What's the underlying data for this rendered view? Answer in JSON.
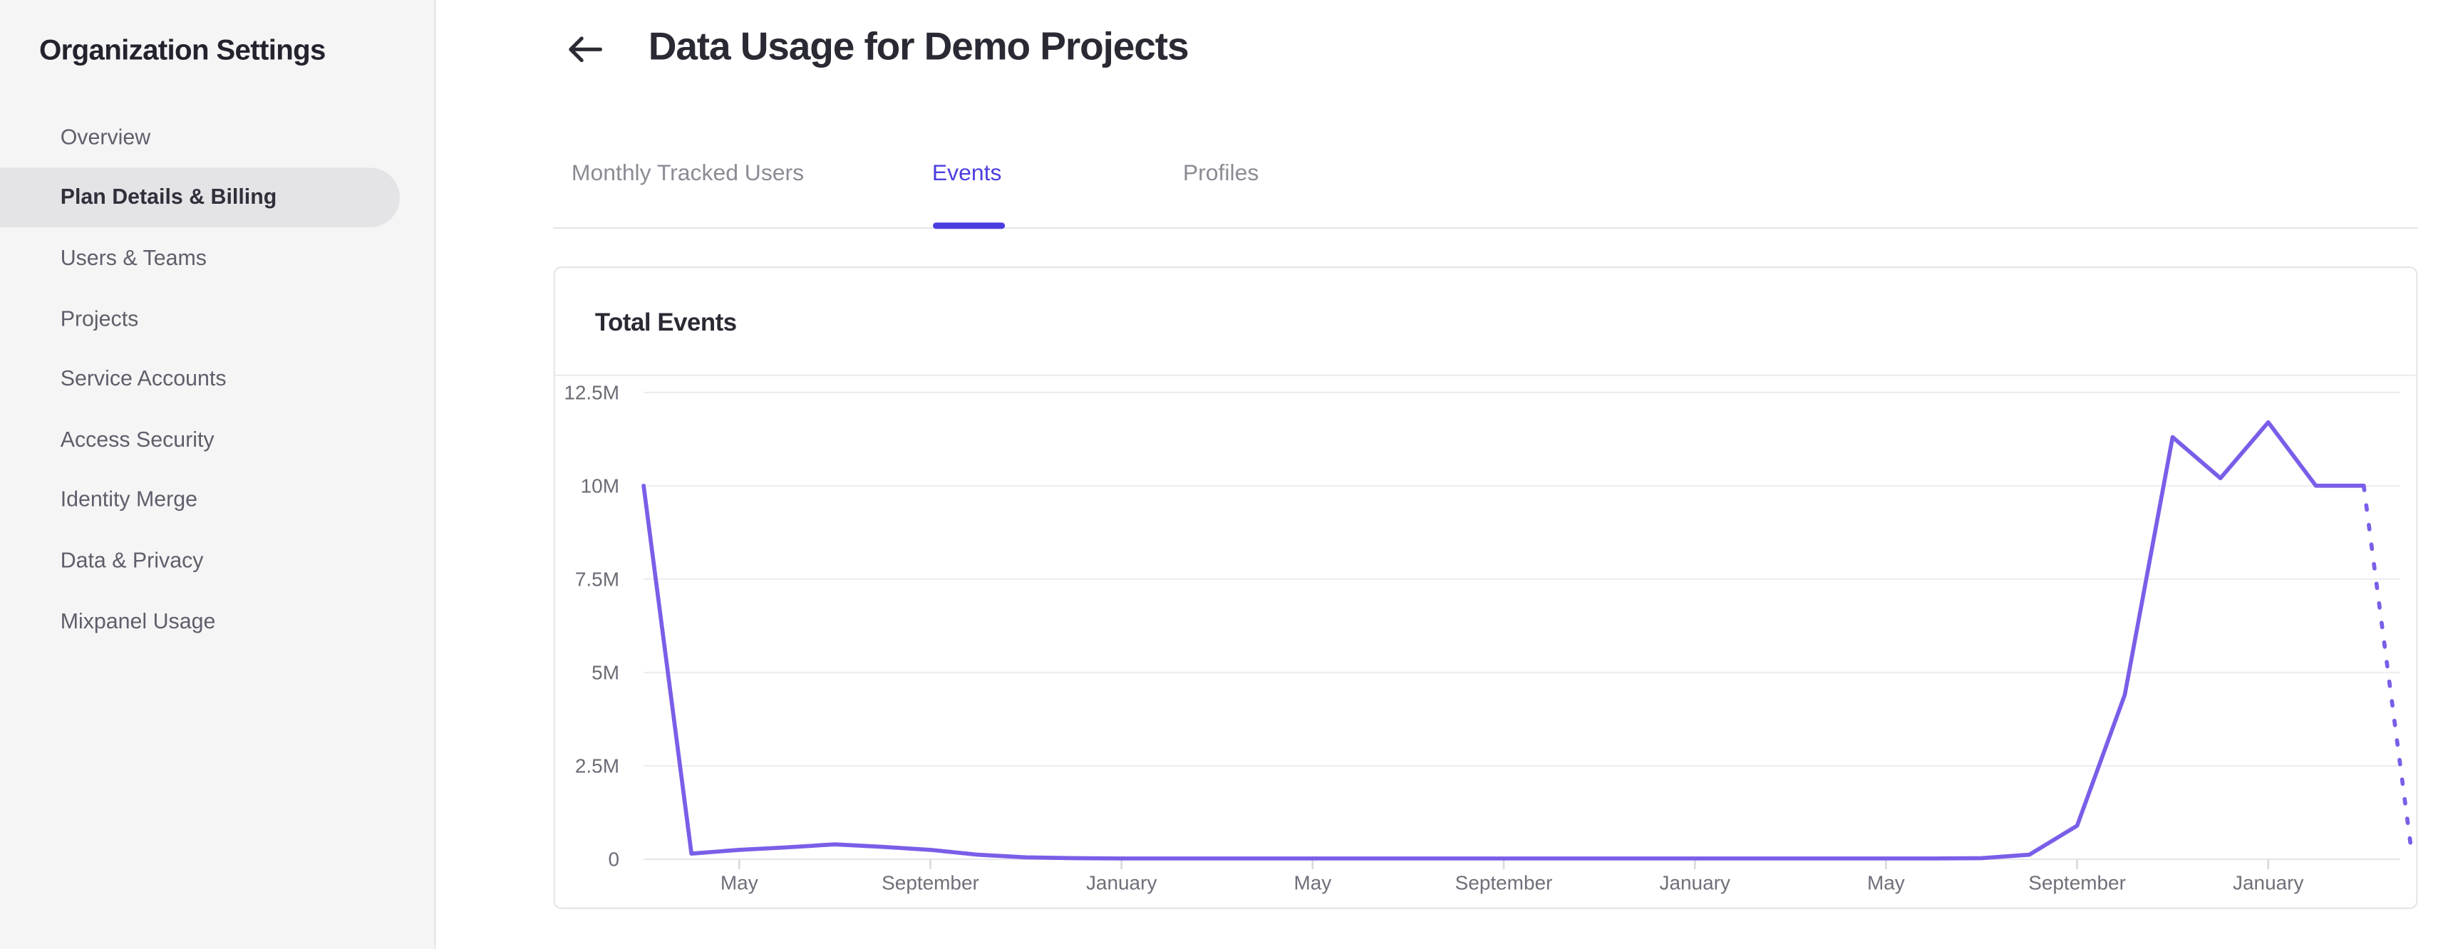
{
  "sidebar": {
    "title": "Organization Settings",
    "items": [
      {
        "label": "Overview",
        "active": false
      },
      {
        "label": "Plan Details & Billing",
        "active": true
      },
      {
        "label": "Users & Teams",
        "active": false
      },
      {
        "label": "Projects",
        "active": false
      },
      {
        "label": "Service Accounts",
        "active": false
      },
      {
        "label": "Access Security",
        "active": false
      },
      {
        "label": "Identity Merge",
        "active": false
      },
      {
        "label": "Data & Privacy",
        "active": false
      },
      {
        "label": "Mixpanel Usage",
        "active": false
      }
    ]
  },
  "header": {
    "back_icon": "left-arrow",
    "title": "Data Usage for Demo Projects"
  },
  "tabs": [
    {
      "label": "Monthly Tracked Users",
      "active": false
    },
    {
      "label": "Events",
      "active": true
    },
    {
      "label": "Profiles",
      "active": false
    }
  ],
  "card": {
    "title": "Total Events"
  },
  "colors": {
    "accent": "#4b3ee0",
    "chart_line": "#7a5ee8",
    "sidebar_bg": "#f5f5f6",
    "sidebar_active_bg": "#e4e4e7",
    "border": "#e6e6e9",
    "text_dark": "#2a2a34",
    "text_gray": "#6b6b76",
    "tab_inactive": "#8b8b95"
  },
  "chart_data": {
    "type": "line",
    "title": "Total Events",
    "ylabel": "",
    "xlabel": "",
    "ylim": [
      0,
      12500000
    ],
    "y_tick_labels": [
      "0",
      "2.5M",
      "5M",
      "7.5M",
      "10M",
      "12.5M"
    ],
    "x_tick_months": [
      "May",
      "September",
      "January"
    ],
    "grid": "horizontal",
    "legend": "none",
    "line_color": "#7a5ee8",
    "x": [
      "March",
      "April",
      "May",
      "June",
      "July",
      "August",
      "September",
      "October",
      "November",
      "December",
      "January",
      "February",
      "March",
      "April",
      "May",
      "June",
      "July",
      "August",
      "September",
      "October",
      "November",
      "December",
      "January",
      "February",
      "March",
      "April",
      "May",
      "June",
      "July",
      "August",
      "September",
      "October",
      "November",
      "December",
      "January",
      "February",
      "March",
      "April"
    ],
    "values_millions": [
      10,
      0.15,
      0.25,
      0.32,
      0.4,
      0.33,
      0.25,
      0.12,
      0.05,
      0.03,
      0.02,
      0.02,
      0.02,
      0.02,
      0.02,
      0.02,
      0.02,
      0.02,
      0.02,
      0.02,
      0.02,
      0.02,
      0.02,
      0.02,
      0.02,
      0.02,
      0.02,
      0.02,
      0.03,
      0.12,
      0.9,
      4.4,
      11.3,
      10.2,
      11.7,
      10,
      10,
      0.2
    ],
    "dotted_from_index": 36,
    "dotted_style": "projection (incomplete month shown as dotted descent)"
  }
}
